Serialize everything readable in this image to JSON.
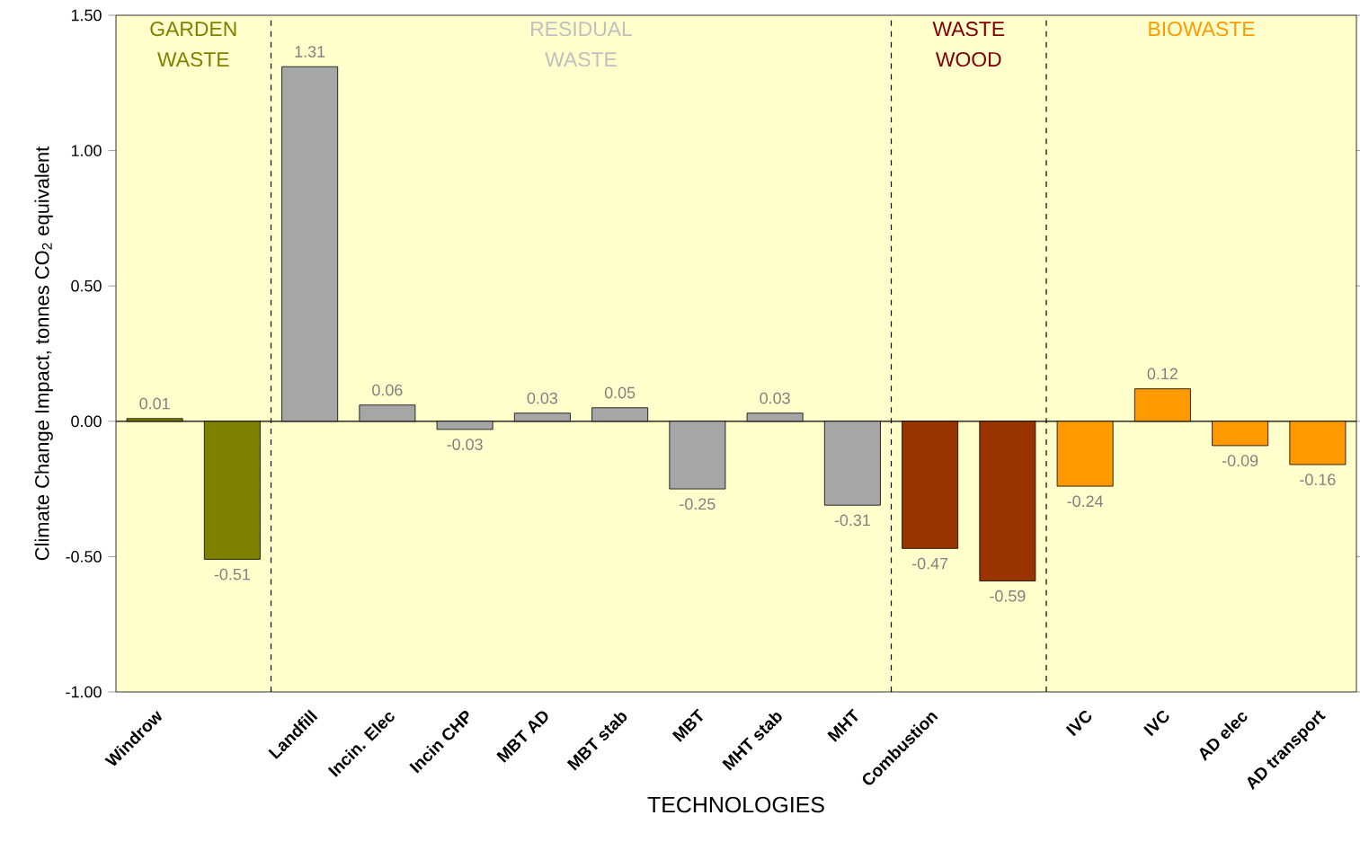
{
  "chart_data": {
    "type": "bar",
    "xlabel": "TECHNOLOGIES",
    "ylabel": "Climate Change Impact, tonnes CO$_{2}$ equivalent",
    "categories": [
      "Windrow",
      null,
      "Landfill",
      "Incin. Elec",
      "Incin CHP",
      "MBT AD",
      "MBT stab",
      "MBT",
      "MHT stab",
      "MHT",
      "Combustion",
      null,
      "IVC",
      "IVC",
      "AD elec",
      "AD transport"
    ],
    "values": [
      0.01,
      -0.51,
      1.31,
      0.06,
      -0.03,
      0.03,
      0.05,
      -0.25,
      0.03,
      -0.31,
      -0.47,
      -0.59,
      -0.24,
      0.12,
      -0.09,
      -0.16
    ],
    "value_labels": [
      "0.01",
      "-0.51",
      "1.31",
      "0.06",
      "-0.03",
      "0.03",
      "0.05",
      "-0.25",
      "0.03",
      "-0.31",
      "-0.47",
      "-0.59",
      "-0.24",
      "0.12",
      "-0.09",
      "-0.16"
    ],
    "colors": [
      "#808000",
      "#808000",
      "#a6a6a6",
      "#a6a6a6",
      "#a6a6a6",
      "#a6a6a6",
      "#a6a6a6",
      "#a6a6a6",
      "#a6a6a6",
      "#a6a6a6",
      "#993300",
      "#993300",
      "#ff9900",
      "#ff9900",
      "#ff9900",
      "#ff9900"
    ],
    "ylim": [
      -1.0,
      1.5
    ],
    "yticks": [
      {
        "value": -1.0,
        "label": "-1.00"
      },
      {
        "value": -0.5,
        "label": "-0.50"
      },
      {
        "value": 0.0,
        "label": "0.00"
      },
      {
        "value": 0.5,
        "label": "0.50"
      },
      {
        "value": 1.0,
        "label": "1.00"
      },
      {
        "value": 1.5,
        "label": "1.50"
      }
    ],
    "annotations": [
      "GARDEN WASTE",
      "RESIDUAL WASTE",
      "WASTE WOOD",
      "BIOWASTE"
    ]
  }
}
